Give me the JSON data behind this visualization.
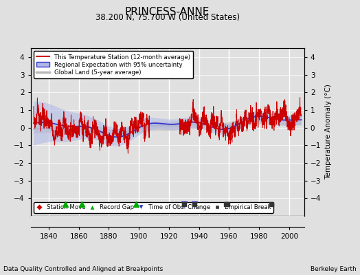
{
  "title": "PRINCESS-ANNE",
  "subtitle": "38.200 N, 75.700 W (United States)",
  "ylabel": "Temperature Anomaly (°C)",
  "xlabel_note": "Data Quality Controlled and Aligned at Breakpoints",
  "credit": "Berkeley Earth",
  "ylim": [
    -5,
    4.5
  ],
  "yticks": [
    -4,
    -3,
    -2,
    -1,
    0,
    1,
    2,
    3,
    4
  ],
  "xlim": [
    1828,
    2010
  ],
  "xticks": [
    1840,
    1860,
    1880,
    1900,
    1920,
    1940,
    1960,
    1980,
    2000
  ],
  "year_start": 1830,
  "year_end": 2008,
  "seed": 42,
  "background_color": "#e0e0e0",
  "plot_bg": "#e0e0e0",
  "grid_color": "#ffffff",
  "record_gaps": [
    1851,
    1862,
    1898
  ],
  "tobs_changes": [
    1930,
    1937
  ],
  "empirical_breaks": [
    1930,
    1937,
    1958,
    1959,
    1988
  ]
}
